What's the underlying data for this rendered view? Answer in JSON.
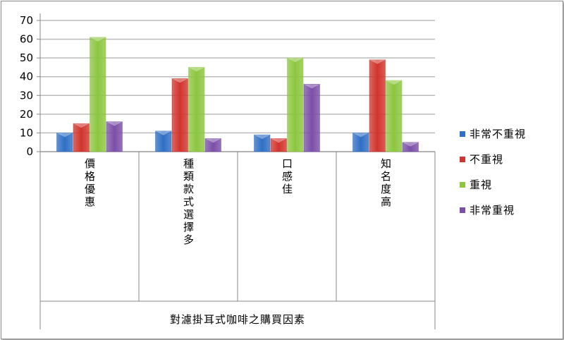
{
  "chart_data": {
    "type": "bar",
    "categories": [
      "價格優惠",
      "種類款式選擇多",
      "口感佳",
      "知名度高"
    ],
    "series": [
      {
        "name": "非常不重視",
        "color": "#2f6fc4",
        "values": [
          10,
          11,
          9,
          10
        ]
      },
      {
        "name": "不重視",
        "color": "#d0342c",
        "values": [
          15,
          39,
          7,
          49
        ]
      },
      {
        "name": "重視",
        "color": "#8cc63f",
        "values": [
          61,
          45,
          50,
          38
        ]
      },
      {
        "name": "非常重視",
        "color": "#7b4fa8",
        "values": [
          16,
          7,
          36,
          5
        ]
      }
    ],
    "xlabel": "對濾掛耳式咖啡之購買因素",
    "ylabel": "",
    "ylim": [
      0,
      70
    ],
    "yticks": [
      0,
      10,
      20,
      30,
      40,
      50,
      60,
      70
    ],
    "grid": true,
    "legend": "right"
  }
}
